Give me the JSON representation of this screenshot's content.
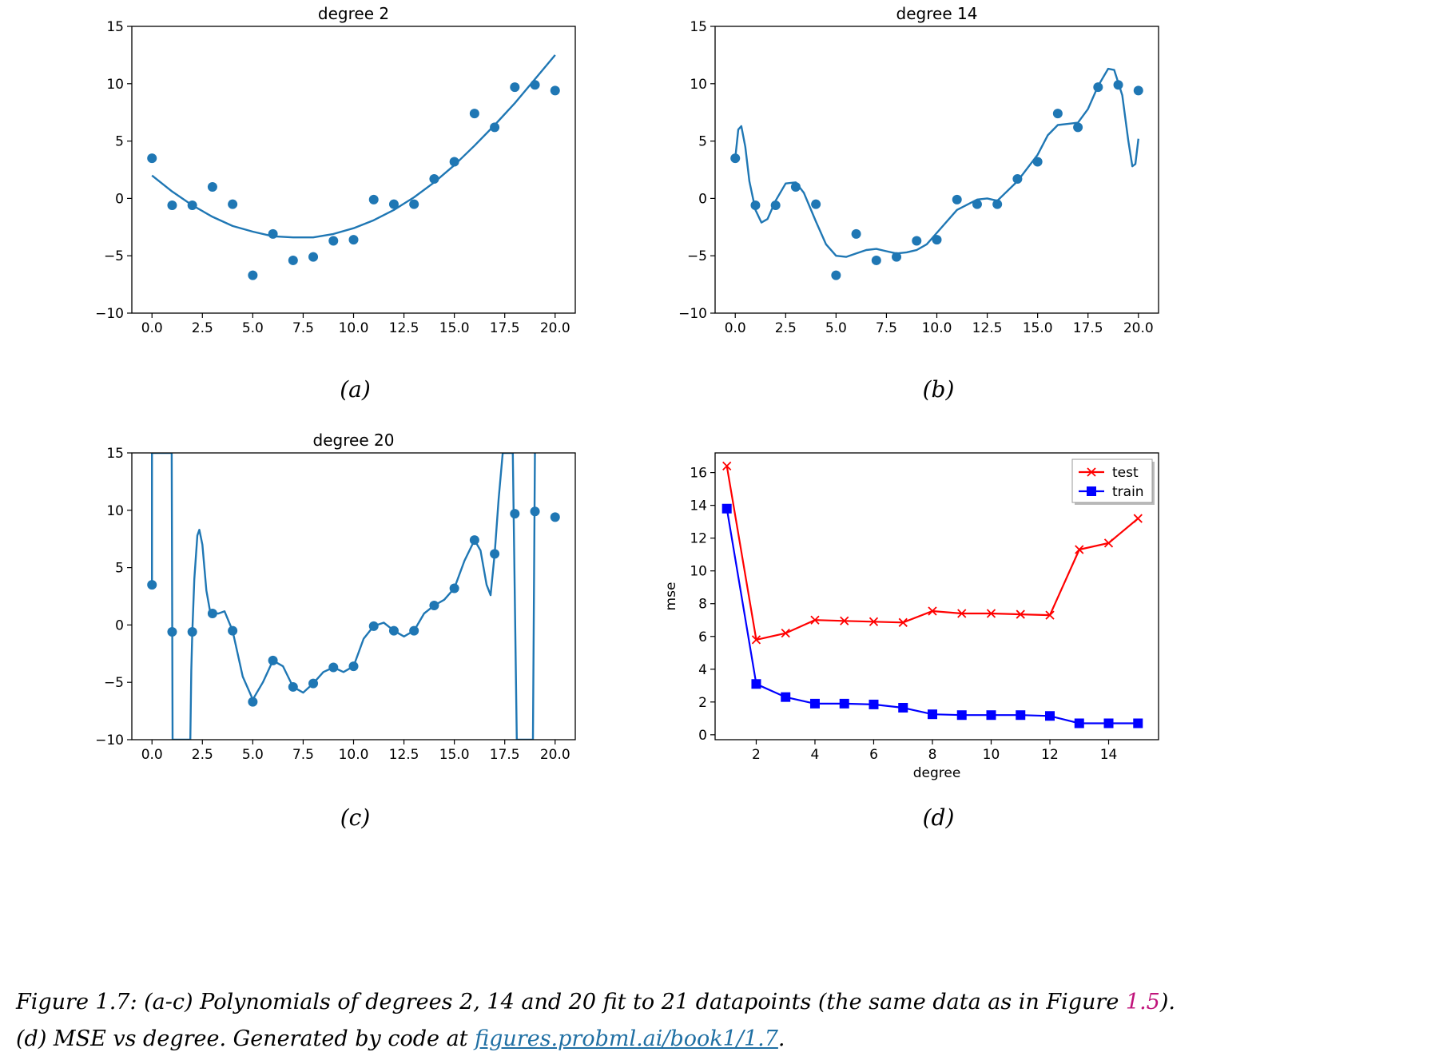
{
  "chart_data": [
    {
      "id": "a",
      "type": "scatter",
      "title": "degree 2",
      "sub_caption": "(a)",
      "xlim": [
        -1,
        21
      ],
      "ylim": [
        -10,
        15
      ],
      "xticks": [
        0,
        2.5,
        5,
        7.5,
        10,
        12.5,
        15,
        17.5,
        20
      ],
      "xtick_labels": [
        "0.0",
        "2.5",
        "5.0",
        "7.5",
        "10.0",
        "12.5",
        "15.0",
        "17.5",
        "20.0"
      ],
      "yticks": [
        -10,
        -5,
        0,
        5,
        10,
        15
      ],
      "ytick_labels": [
        "−10",
        "−5",
        "0",
        "5",
        "10",
        "15"
      ],
      "points": {
        "x": [
          0,
          1,
          2,
          3,
          4,
          5,
          6,
          7,
          8,
          9,
          10,
          11,
          12,
          13,
          14,
          15,
          16,
          17,
          18,
          19,
          20
        ],
        "y": [
          3.5,
          -0.6,
          -0.6,
          1.0,
          -0.5,
          -6.7,
          -3.1,
          -5.4,
          -5.1,
          -3.7,
          -3.6,
          -0.1,
          -0.5,
          -0.5,
          1.7,
          3.2,
          7.4,
          6.2,
          9.7,
          9.9,
          9.4
        ]
      },
      "fit_curve": {
        "x": [
          0,
          1,
          2,
          3,
          4,
          5,
          6,
          7,
          8,
          9,
          10,
          11,
          12,
          13,
          14,
          15,
          16,
          17,
          18,
          19,
          20
        ],
        "y": [
          2.0,
          0.6,
          -0.6,
          -1.6,
          -2.4,
          -2.9,
          -3.3,
          -3.4,
          -3.4,
          -3.1,
          -2.6,
          -1.9,
          -1.0,
          0.1,
          1.4,
          2.9,
          4.6,
          6.4,
          8.3,
          10.4,
          12.5
        ]
      },
      "color": "#1f77b4"
    },
    {
      "id": "b",
      "type": "scatter",
      "title": "degree 14",
      "sub_caption": "(b)",
      "xlim": [
        -1,
        21
      ],
      "ylim": [
        -10,
        15
      ],
      "xticks": [
        0,
        2.5,
        5,
        7.5,
        10,
        12.5,
        15,
        17.5,
        20
      ],
      "xtick_labels": [
        "0.0",
        "2.5",
        "5.0",
        "7.5",
        "10.0",
        "12.5",
        "15.0",
        "17.5",
        "20.0"
      ],
      "yticks": [
        -10,
        -5,
        0,
        5,
        10,
        15
      ],
      "ytick_labels": [
        "−10",
        "−5",
        "0",
        "5",
        "10",
        "15"
      ],
      "points": {
        "x": [
          0,
          1,
          2,
          3,
          4,
          5,
          6,
          7,
          8,
          9,
          10,
          11,
          12,
          13,
          14,
          15,
          16,
          17,
          18,
          19,
          20
        ],
        "y": [
          3.5,
          -0.6,
          -0.6,
          1.0,
          -0.5,
          -6.7,
          -3.1,
          -5.4,
          -5.1,
          -3.7,
          -3.6,
          -0.1,
          -0.5,
          -0.5,
          1.7,
          3.2,
          7.4,
          6.2,
          9.7,
          9.9,
          9.4
        ]
      },
      "fit_curve": {
        "x": [
          0,
          0.15,
          0.3,
          0.5,
          0.7,
          1.0,
          1.3,
          1.6,
          2.0,
          2.5,
          3.0,
          3.4,
          4.0,
          4.5,
          5.0,
          5.5,
          6.0,
          6.5,
          7.0,
          7.5,
          8.0,
          8.5,
          9.0,
          9.5,
          10.0,
          11.0,
          12.0,
          12.5,
          13.0,
          14.0,
          15.0,
          15.5,
          16.0,
          16.5,
          17.0,
          17.5,
          18.0,
          18.5,
          18.8,
          19.2,
          19.5,
          19.7,
          19.85,
          20.0
        ],
        "y": [
          3.5,
          6.0,
          6.3,
          4.5,
          1.5,
          -1.0,
          -2.1,
          -1.8,
          -0.2,
          1.3,
          1.4,
          0.5,
          -2.0,
          -4.0,
          -5.0,
          -5.1,
          -4.8,
          -4.5,
          -4.4,
          -4.6,
          -4.8,
          -4.7,
          -4.5,
          -4.0,
          -3.0,
          -1.0,
          -0.1,
          0.0,
          -0.2,
          1.5,
          3.8,
          5.5,
          6.4,
          6.5,
          6.6,
          7.8,
          9.8,
          11.3,
          11.2,
          9.0,
          5.0,
          2.8,
          3.0,
          5.2
        ]
      },
      "color": "#1f77b4"
    },
    {
      "id": "c",
      "type": "scatter",
      "title": "degree 20",
      "sub_caption": "(c)",
      "xlim": [
        -1,
        21
      ],
      "ylim": [
        -10,
        15
      ],
      "xticks": [
        0,
        2.5,
        5,
        7.5,
        10,
        12.5,
        15,
        17.5,
        20
      ],
      "xtick_labels": [
        "0.0",
        "2.5",
        "5.0",
        "7.5",
        "10.0",
        "12.5",
        "15.0",
        "17.5",
        "20.0"
      ],
      "yticks": [
        -10,
        -5,
        0,
        5,
        10,
        15
      ],
      "ytick_labels": [
        "−10",
        "−5",
        "0",
        "5",
        "10",
        "15"
      ],
      "points": {
        "x": [
          0,
          1,
          2,
          3,
          4,
          5,
          6,
          7,
          8,
          9,
          10,
          11,
          12,
          13,
          14,
          15,
          16,
          17,
          18,
          19,
          20
        ],
        "y": [
          3.5,
          -0.6,
          -0.6,
          1.0,
          -0.5,
          -6.7,
          -3.1,
          -5.4,
          -5.1,
          -3.7,
          -3.6,
          -0.1,
          -0.5,
          -0.5,
          1.7,
          3.2,
          7.4,
          6.2,
          9.7,
          9.9,
          9.4
        ]
      },
      "fit_curve": {
        "x": [
          0,
          0.0,
          0.98,
          1.02,
          1.05,
          1.9,
          1.95,
          2.0,
          2.1,
          2.25,
          2.35,
          2.5,
          2.7,
          2.9,
          3.0,
          3.3,
          3.6,
          4.0,
          4.5,
          5.0,
          5.5,
          6.0,
          6.5,
          7.0,
          7.5,
          8.0,
          8.5,
          9.0,
          9.5,
          10.0,
          10.5,
          11.0,
          11.5,
          12.0,
          12.5,
          13.0,
          13.5,
          14.0,
          14.5,
          15.0,
          15.5,
          16.0,
          16.3,
          16.6,
          16.8,
          17.0,
          17.2,
          17.4,
          17.55,
          17.6,
          17.9,
          18.1,
          18.2,
          18.9,
          19.0,
          19.0
        ],
        "y": [
          3.5,
          15,
          15,
          -10,
          -10,
          -10,
          -4.0,
          -0.6,
          4.0,
          7.8,
          8.3,
          7.0,
          3.0,
          1.0,
          1.0,
          1.0,
          1.2,
          -0.5,
          -4.5,
          -6.5,
          -5.0,
          -3.1,
          -3.6,
          -5.4,
          -5.9,
          -5.1,
          -4.1,
          -3.7,
          -4.1,
          -3.6,
          -1.2,
          -0.1,
          0.2,
          -0.5,
          -1.0,
          -0.5,
          1.0,
          1.7,
          2.2,
          3.2,
          5.6,
          7.4,
          6.5,
          3.5,
          2.6,
          6.2,
          11.0,
          15,
          15,
          15,
          15,
          -10,
          -10,
          -10,
          15,
          15
        ]
      },
      "color": "#1f77b4"
    },
    {
      "id": "d",
      "type": "line",
      "title": "",
      "sub_caption": "(d)",
      "xlabel": "degree",
      "ylabel": "mse",
      "xlim": [
        0.6,
        15.7
      ],
      "ylim": [
        -0.3,
        17.2
      ],
      "xticks": [
        2,
        4,
        6,
        8,
        10,
        12,
        14
      ],
      "xtick_labels": [
        "2",
        "4",
        "6",
        "8",
        "10",
        "12",
        "14"
      ],
      "yticks": [
        0,
        2,
        4,
        6,
        8,
        10,
        12,
        14,
        16
      ],
      "ytick_labels": [
        "0",
        "2",
        "4",
        "6",
        "8",
        "10",
        "12",
        "14",
        "16"
      ],
      "x": [
        1,
        2,
        3,
        4,
        5,
        6,
        7,
        8,
        9,
        10,
        11,
        12,
        13,
        14,
        15
      ],
      "series": [
        {
          "name": "test",
          "color": "#ff0000",
          "marker": "x",
          "values": [
            16.4,
            5.8,
            6.2,
            7.0,
            6.95,
            6.9,
            6.85,
            7.55,
            7.4,
            7.4,
            7.35,
            7.3,
            11.3,
            11.7,
            13.2
          ]
        },
        {
          "name": "train",
          "color": "#0000ff",
          "marker": "square",
          "values": [
            13.8,
            3.1,
            2.3,
            1.9,
            1.9,
            1.85,
            1.65,
            1.25,
            1.2,
            1.2,
            1.2,
            1.15,
            0.7,
            0.7,
            0.7
          ]
        }
      ],
      "legend": "top-right"
    }
  ],
  "caption": {
    "line1_a": "Figure 1.7: (a-c) Polynomials of degrees 2, 14 and 20 fit to 21 datapoints (the same data as in Figure ",
    "line1_ref": "1.5",
    "line1_b": ").",
    "line2_a": "(d) MSE vs degree. Generated by code at ",
    "line2_link": "figures.probml.ai/book1/1.7",
    "line2_b": "."
  }
}
